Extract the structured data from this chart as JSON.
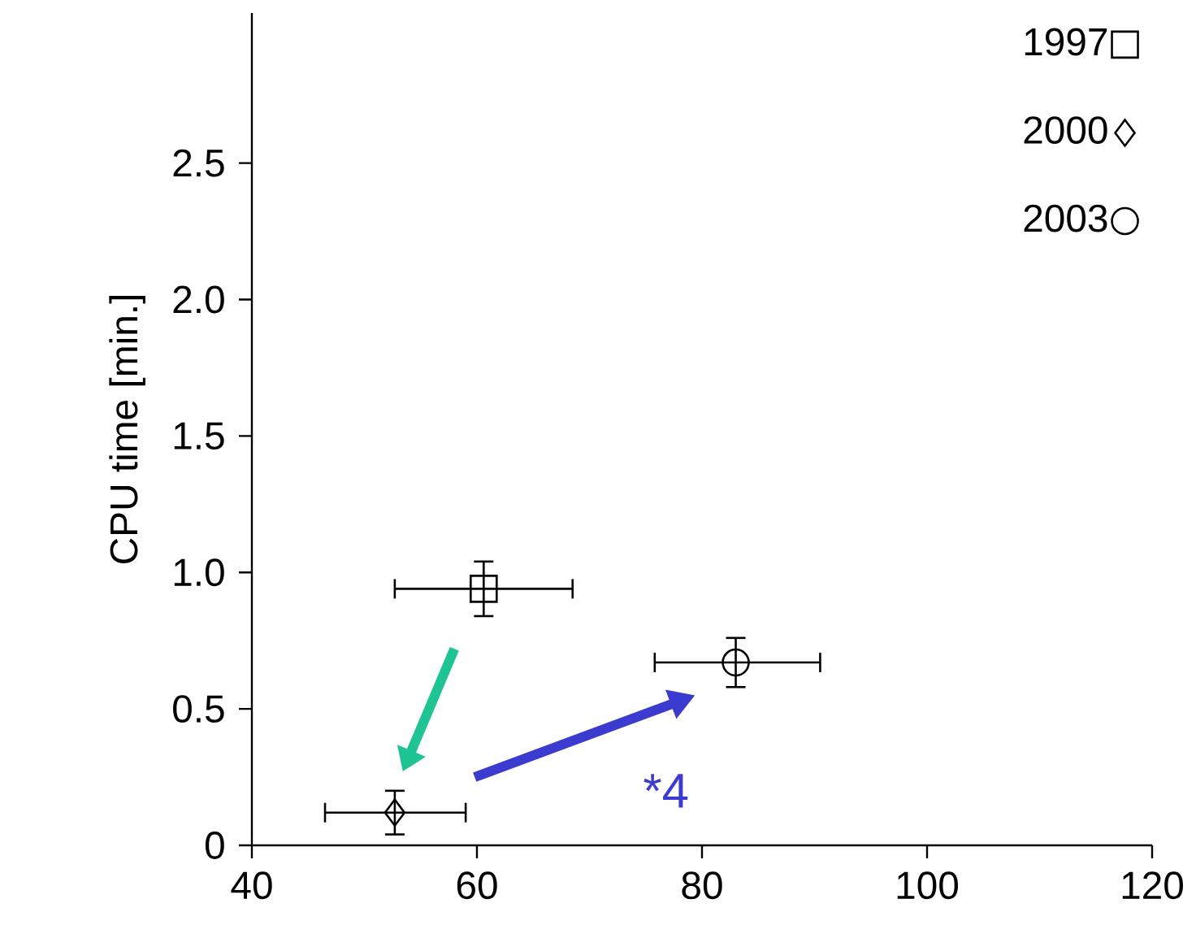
{
  "chart_data": {
    "type": "scatter",
    "ylabel": "CPU time [min.]",
    "xlim": [
      40,
      120
    ],
    "xticks": [
      40,
      60,
      80,
      100,
      120
    ],
    "ylim": [
      0,
      3.05
    ],
    "yticks": [
      {
        "value": 0,
        "label": "0"
      },
      {
        "value": 0.5,
        "label": "0.5"
      },
      {
        "value": 1.0,
        "label": "1.0"
      },
      {
        "value": 1.5,
        "label": "1.5"
      },
      {
        "value": 2.0,
        "label": "2.0"
      },
      {
        "value": 2.5,
        "label": "2.5"
      }
    ],
    "legend": "top right",
    "series": [
      {
        "name": "1997",
        "color": "#000000",
        "marker": "square",
        "x": [
          60.6
        ],
        "values": [
          0.94
        ],
        "xerrors": [
          [
            52.7,
            68.5
          ]
        ],
        "errors": [
          [
            0.84,
            1.04
          ]
        ]
      },
      {
        "name": "2000",
        "color": "#000000",
        "marker": "diamond",
        "x": [
          52.7
        ],
        "values": [
          0.12
        ],
        "xerrors": [
          [
            46.5,
            59.0
          ]
        ],
        "errors": [
          [
            0.04,
            0.2
          ]
        ]
      },
      {
        "name": "2003",
        "color": "#000000",
        "marker": "circle",
        "x": [
          83.0
        ],
        "values": [
          0.67
        ],
        "xerrors": [
          [
            75.8,
            90.5
          ]
        ],
        "errors": [
          [
            0.58,
            0.76
          ]
        ]
      }
    ],
    "annotations": [
      "*4"
    ]
  }
}
